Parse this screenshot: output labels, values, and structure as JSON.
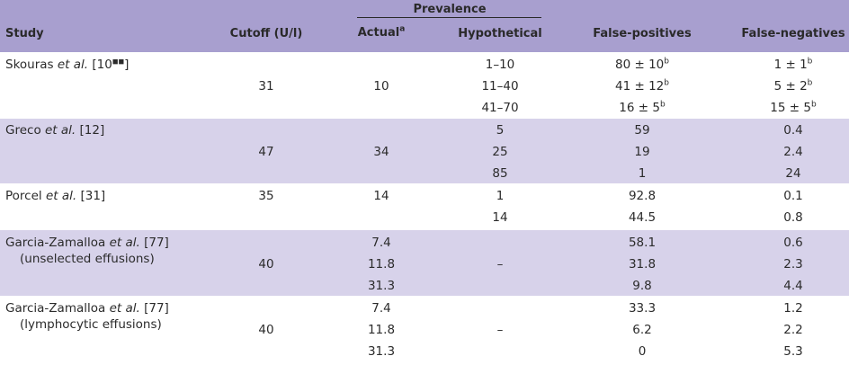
{
  "header": {
    "study": "Study",
    "cutoff": "Cutoff (U/l)",
    "prevalence": "Prevalence",
    "actual": "Actual",
    "actual_sup": "a",
    "hypothetical": "Hypothetical",
    "false_positives": "False-positives",
    "false_negatives": "False-negatives"
  },
  "rows": [
    {
      "study_pre": "Skouras ",
      "study_ital": "et al.",
      "study_post": " [10",
      "study_marks": "■■",
      "study_close": "]",
      "cutoff": "31",
      "actual": [
        "10"
      ],
      "hyp": [
        "1–10",
        "11–40",
        "41–70"
      ],
      "fp_main": [
        "80 ± 10",
        "41 ± 12",
        "16 ± 5"
      ],
      "fp_sup": [
        "b",
        "b",
        "b"
      ],
      "fn_main": [
        "1 ± 1",
        "5 ± 2",
        "15 ± 5"
      ],
      "fn_sup": [
        "b",
        "b",
        "b"
      ]
    },
    {
      "study_pre": "Greco ",
      "study_ital": "et al.",
      "study_post": " [12]",
      "cutoff": "47",
      "actual": [
        "34"
      ],
      "hyp": [
        "5",
        "25",
        "85"
      ],
      "fp": [
        "59",
        "19",
        "1"
      ],
      "fn": [
        "0.4",
        "2.4",
        "24"
      ]
    },
    {
      "study_pre": "Porcel ",
      "study_ital": "et al.",
      "study_post": " [31]",
      "cutoff": "35",
      "actual": [
        "14"
      ],
      "hyp": [
        "1",
        "14"
      ],
      "fp": [
        "92.8",
        "44.5"
      ],
      "fn": [
        "0.1",
        "0.8"
      ]
    },
    {
      "study_pre": "Garcia-Zamalloa ",
      "study_ital": "et al.",
      "study_post": " [77]",
      "study_line2": "(unselected effusions)",
      "cutoff": "40",
      "actual": [
        "7.4",
        "11.8",
        "31.3"
      ],
      "hyp_dash": "–",
      "fp": [
        "58.1",
        "31.8",
        "9.8"
      ],
      "fn": [
        "0.6",
        "2.3",
        "4.4"
      ]
    },
    {
      "study_pre": "Garcia-Zamalloa ",
      "study_ital": "et al.",
      "study_post": " [77]",
      "study_line2": "(lymphocytic effusions)",
      "cutoff": "40",
      "actual": [
        "7.4",
        "11.8",
        "31.3"
      ],
      "hyp_dash": "–",
      "fp": [
        "33.3",
        "6.2",
        "0"
      ],
      "fn": [
        "1.2",
        "2.2",
        "5.3"
      ]
    }
  ]
}
